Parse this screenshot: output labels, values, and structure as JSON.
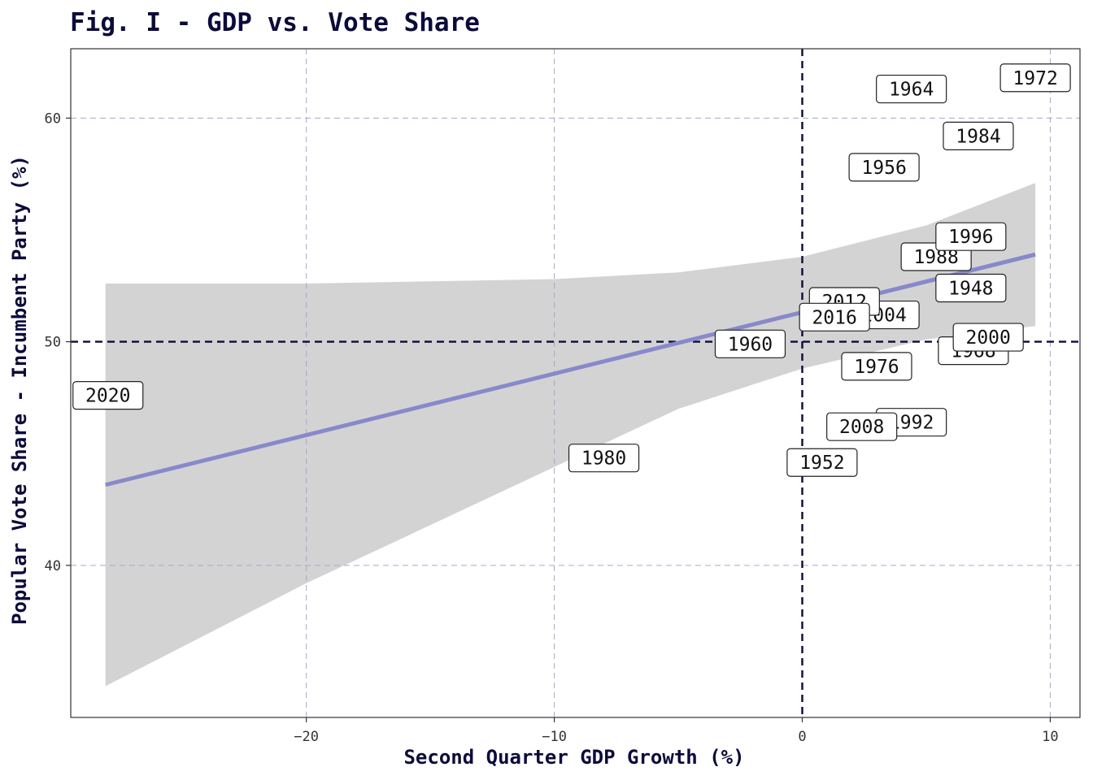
{
  "chart_data": {
    "type": "scatter",
    "title": "Fig. I - GDP vs. Vote Share",
    "xlabel": "Second Quarter GDP Growth (%)",
    "ylabel": "Popular Vote Share - Incumbent Party (%)",
    "xlim": [
      -29.5,
      11.2
    ],
    "ylim": [
      33.2,
      63.1
    ],
    "x_ticks": [
      -20,
      -10,
      0,
      10
    ],
    "y_ticks": [
      40,
      50,
      60
    ],
    "x_tick_labels": [
      "−20",
      "−10",
      "0",
      "10"
    ],
    "y_tick_labels": [
      "40",
      "50",
      "60"
    ],
    "reference_lines": {
      "x": 0,
      "y": 50
    },
    "grid": true,
    "legend": "none",
    "points": [
      {
        "label": "1948",
        "x": 6.8,
        "y": 52.4
      },
      {
        "label": "1952",
        "x": 0.8,
        "y": 44.6
      },
      {
        "label": "1956",
        "x": 3.3,
        "y": 57.8
      },
      {
        "label": "1960",
        "x": -2.1,
        "y": 49.9
      },
      {
        "label": "1964",
        "x": 4.4,
        "y": 61.3
      },
      {
        "label": "1968",
        "x": 6.9,
        "y": 49.6
      },
      {
        "label": "1972",
        "x": 9.4,
        "y": 61.8
      },
      {
        "label": "1976",
        "x": 3.0,
        "y": 48.9
      },
      {
        "label": "1980",
        "x": -8.0,
        "y": 44.8
      },
      {
        "label": "1984",
        "x": 7.1,
        "y": 59.2
      },
      {
        "label": "1988",
        "x": 5.4,
        "y": 53.8
      },
      {
        "label": "1992",
        "x": 4.4,
        "y": 46.4
      },
      {
        "label": "1996",
        "x": 6.8,
        "y": 54.7
      },
      {
        "label": "2000",
        "x": 7.5,
        "y": 50.2
      },
      {
        "label": "2004",
        "x": 3.3,
        "y": 51.2
      },
      {
        "label": "2008",
        "x": 2.4,
        "y": 46.2
      },
      {
        "label": "2012",
        "x": 1.7,
        "y": 51.8
      },
      {
        "label": "2016",
        "x": 1.3,
        "y": 51.1
      },
      {
        "label": "2020",
        "x": -28.0,
        "y": 47.6
      }
    ],
    "fit_line": {
      "x": [
        -28.1,
        9.4
      ],
      "y": [
        43.6,
        53.9
      ],
      "color": "#8888cc"
    },
    "confidence_band": {
      "x": [
        -28.1,
        -20,
        -10,
        -5,
        0,
        5,
        9.4
      ],
      "upper": [
        52.6,
        52.6,
        52.8,
        53.1,
        53.8,
        55.2,
        57.1
      ],
      "lower": [
        34.6,
        39.2,
        44.4,
        47.0,
        48.8,
        50.1,
        50.7
      ],
      "color": "#d3d3d3"
    },
    "colors": {
      "title": "#0b0b3b",
      "grid": "#a6a6d2",
      "reference": "#0b0b3b",
      "axis": "#333333"
    }
  }
}
